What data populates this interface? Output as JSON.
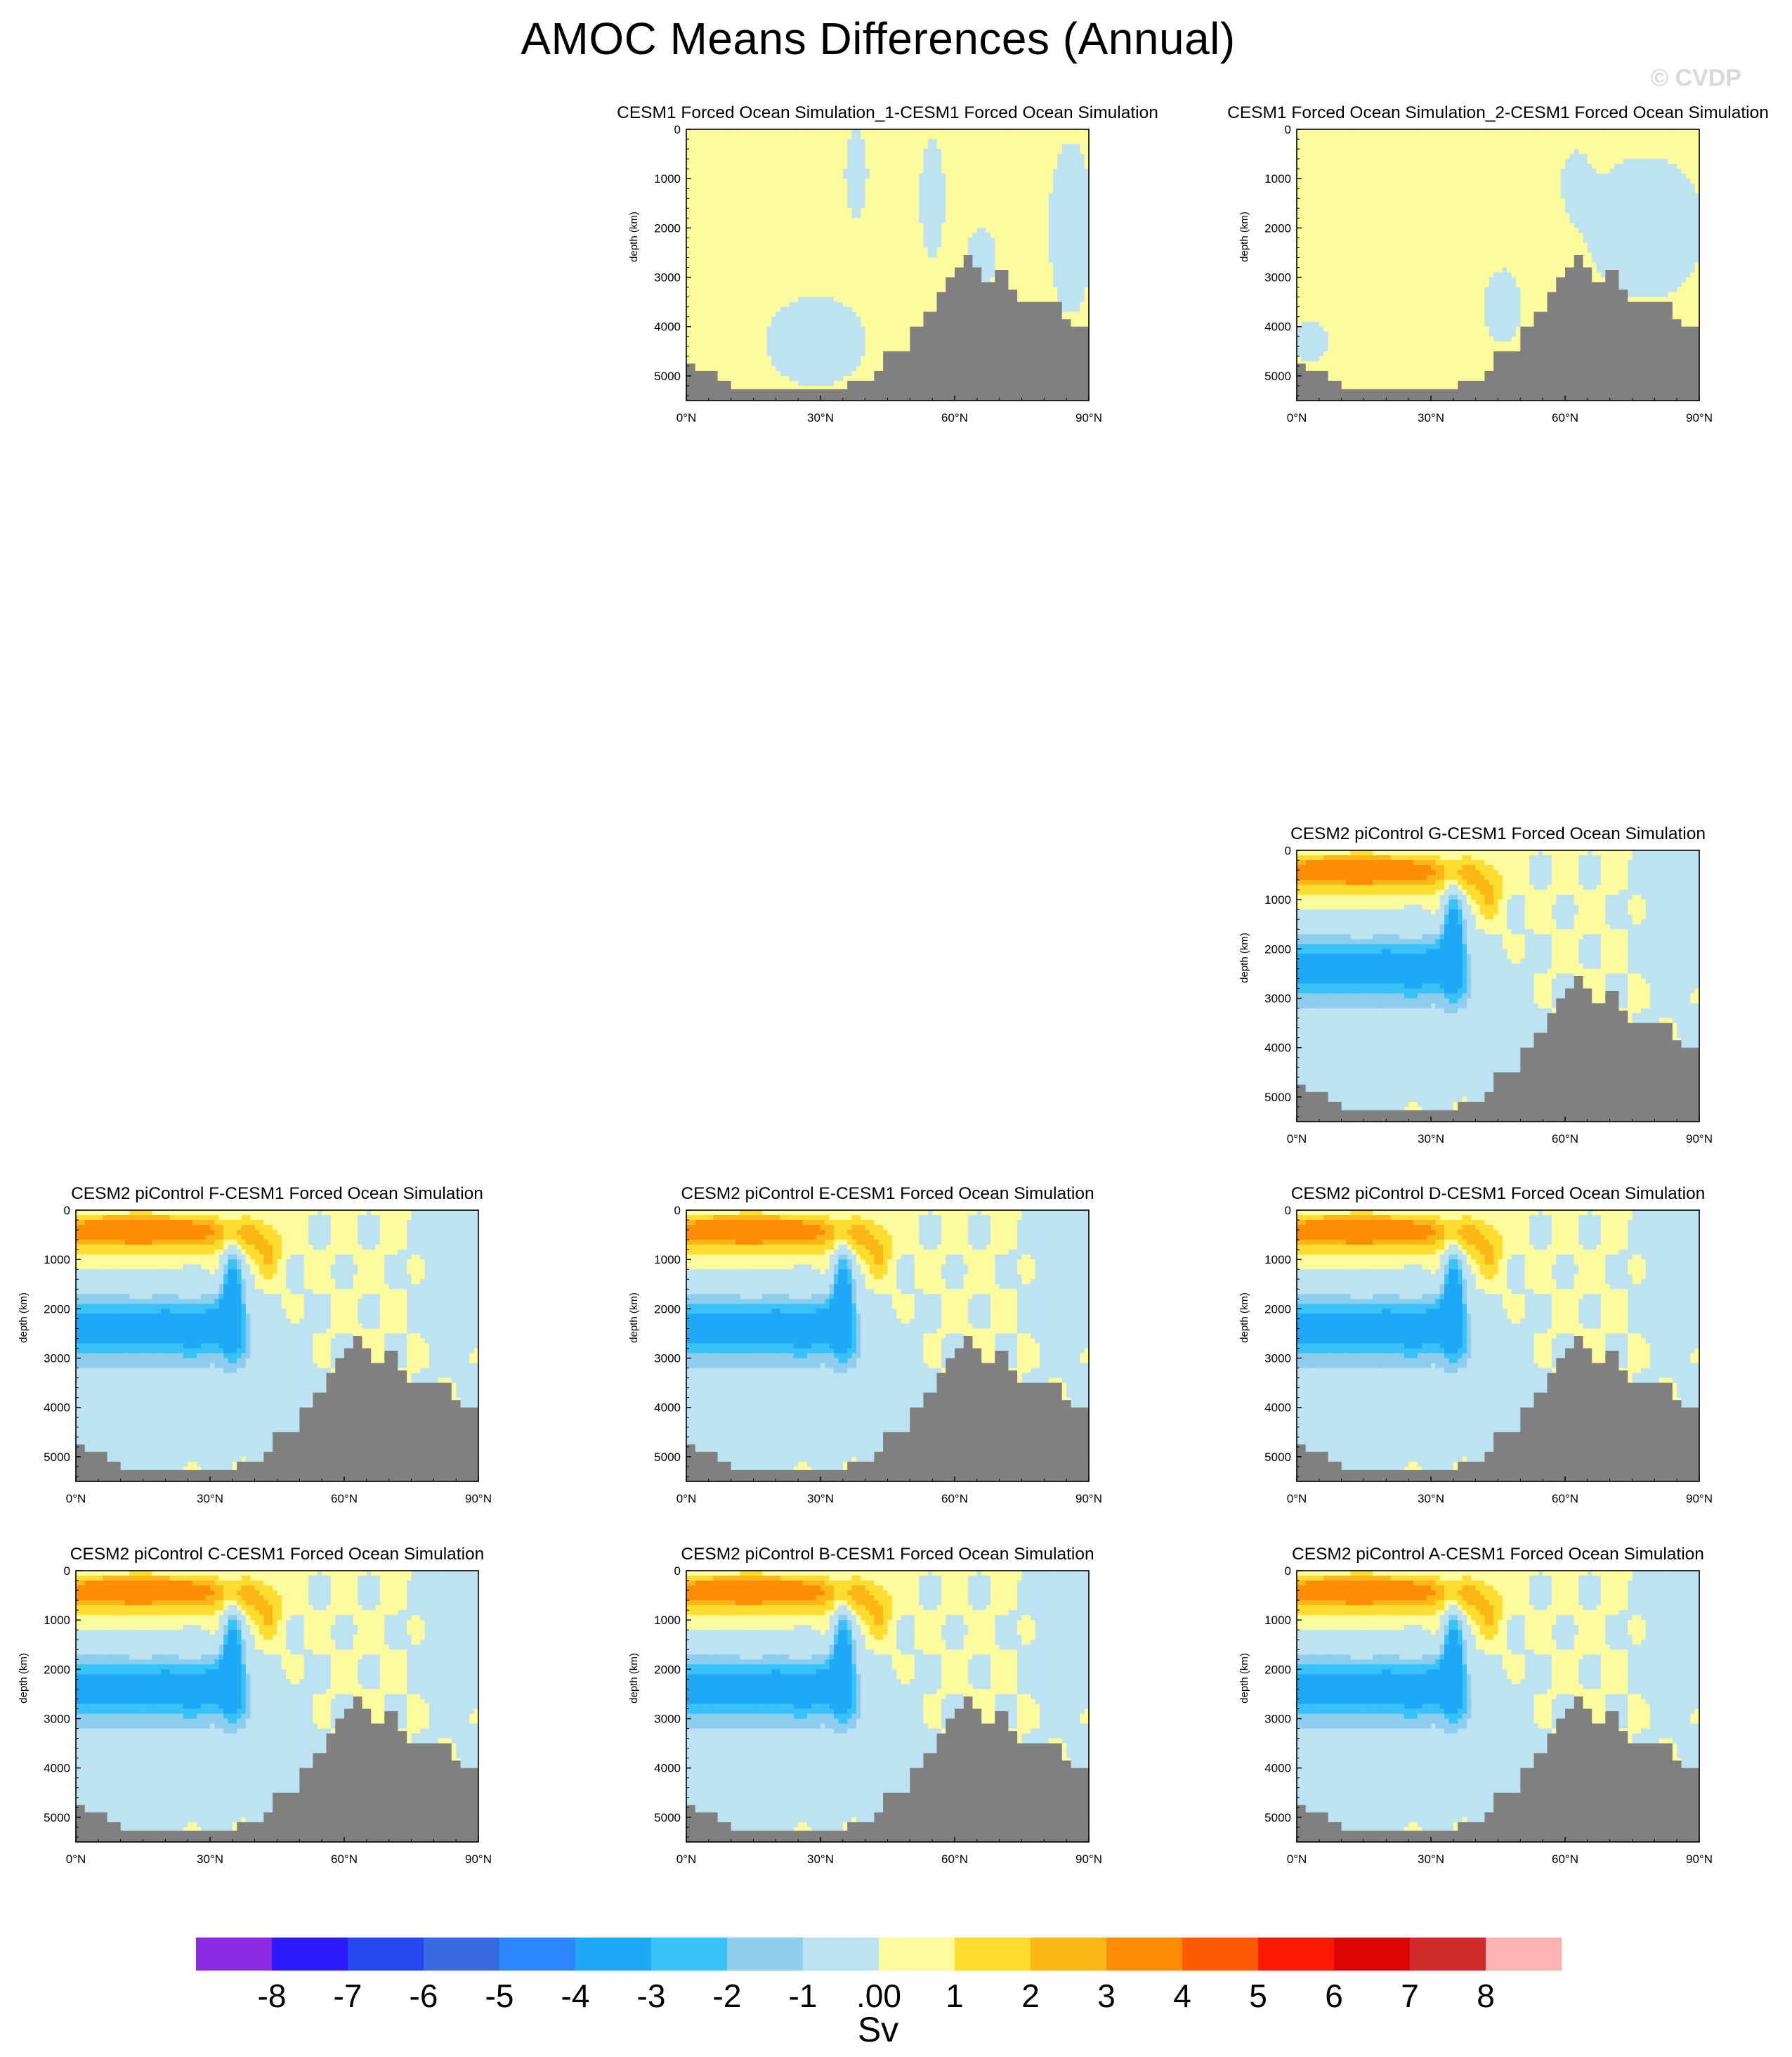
{
  "title": "AMOC Means Differences (Annual)",
  "watermark": "© CVDP",
  "colors": {
    "land": "#808080",
    "contour_line": "#555555",
    "levels": [
      "#8a2be2",
      "#2c1aff",
      "#2448f0",
      "#3a6ae0",
      "#2d88ff",
      "#1ea8f5",
      "#37c3f7",
      "#8ecdee",
      "#bde3f3",
      "#fefb9c",
      "#fedd30",
      "#fcb618",
      "#fd8c06",
      "#fd5a04",
      "#fd1a04",
      "#dc0404",
      "#d02b2b",
      "#ffb3b3"
    ]
  },
  "axes": {
    "x_ticks": [
      "0°N",
      "30°N",
      "60°N",
      "90°N"
    ],
    "y_ticks": [
      "0",
      "1000",
      "2000",
      "3000",
      "4000",
      "5000"
    ],
    "ylabel": "depth (km)",
    "xlim": [
      0,
      90
    ],
    "ylim": [
      5500,
      0
    ]
  },
  "colorbar": {
    "labels": [
      "-8",
      "-7",
      "-6",
      "-5",
      "-4",
      "-3",
      "-2",
      "-1",
      ".00",
      "1",
      "2",
      "3",
      "4",
      "5",
      "6",
      "7",
      "8"
    ],
    "units": "Sv"
  },
  "chart_data": [
    {
      "type": "heatmap",
      "title": "CESM1 Forced Ocean Simulation_1-CESM1 Forced Ocean Simulation",
      "pattern": "weak1"
    },
    {
      "type": "heatmap",
      "title": "CESM1 Forced Ocean Simulation_2-CESM1 Forced Ocean Simulation",
      "pattern": "weak2"
    },
    {
      "type": "heatmap",
      "title": "CESM2 piControl G-CESM1 Forced Ocean Simulation",
      "pattern": "strong"
    },
    {
      "type": "heatmap",
      "title": "CESM2 piControl F-CESM1 Forced Ocean Simulation",
      "pattern": "strong"
    },
    {
      "type": "heatmap",
      "title": "CESM2 piControl E-CESM1 Forced Ocean Simulation",
      "pattern": "strong"
    },
    {
      "type": "heatmap",
      "title": "CESM2 piControl D-CESM1 Forced Ocean Simulation",
      "pattern": "strong"
    },
    {
      "type": "heatmap",
      "title": "CESM2 piControl C-CESM1 Forced Ocean Simulation",
      "pattern": "strong"
    },
    {
      "type": "heatmap",
      "title": "CESM2 piControl B-CESM1 Forced Ocean Simulation",
      "pattern": "strong"
    },
    {
      "type": "heatmap",
      "title": "CESM2 piControl A-CESM1 Forced Ocean Simulation",
      "pattern": "strong"
    }
  ]
}
